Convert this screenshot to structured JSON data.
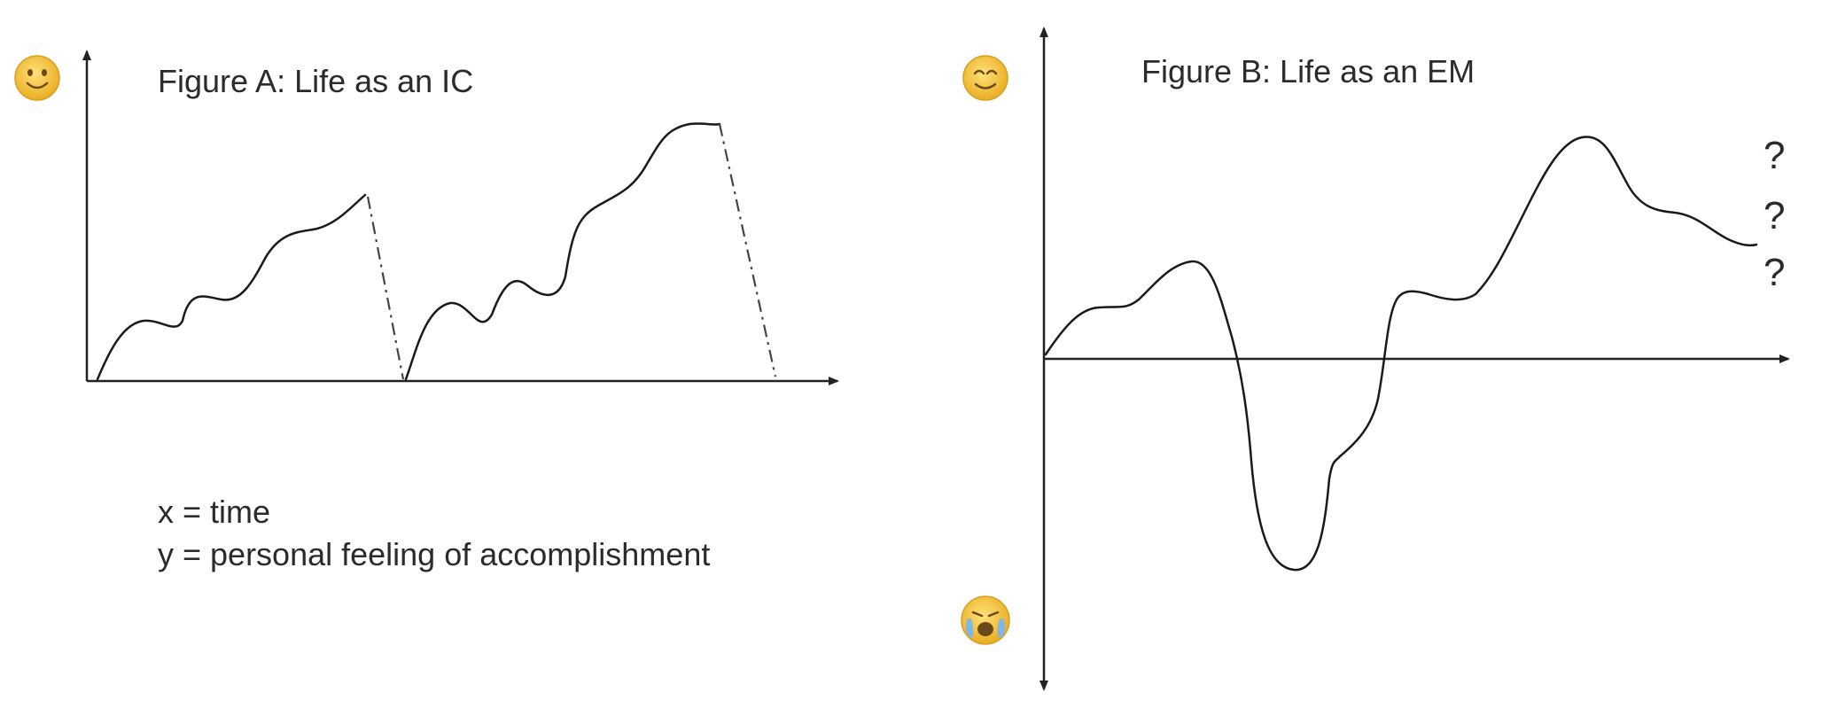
{
  "figure_a": {
    "title": "Figure A: Life as an IC",
    "y_top_icon": "smiling-face-emoji-icon"
  },
  "figure_b": {
    "title": "Figure B: Life as an EM",
    "y_top_icon": "smiling-face-emoji-icon",
    "y_bottom_icon": "crying-face-emoji-icon",
    "question_marks": [
      "?",
      "?",
      "?"
    ]
  },
  "legend": {
    "x_line": "x = time",
    "y_line": "y = personal feeling of accomplishment"
  },
  "colors": {
    "line": "#1a1a1a",
    "emoji_face": "#f2c23a",
    "emoji_outline": "#d9a020",
    "tears": "#7fb6e6"
  }
}
